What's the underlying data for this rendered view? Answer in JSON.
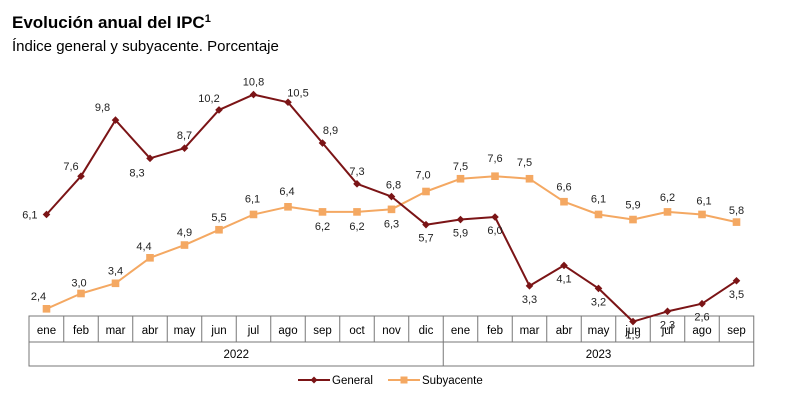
{
  "header": {
    "title": "Evolución anual del IPC",
    "title_sup": "1",
    "subtitle": "Índice general y subyacente. Porcentaje"
  },
  "colors": {
    "general": "#7b1416",
    "subyacente": "#f4a862",
    "axis": "#777777"
  },
  "chart_data": {
    "type": "line",
    "title": "Evolución anual del IPC",
    "subtitle": "Índice general y subyacente. Porcentaje",
    "categories": [
      "ene",
      "feb",
      "mar",
      "abr",
      "may",
      "jun",
      "jul",
      "ago",
      "sep",
      "oct",
      "nov",
      "dic",
      "ene",
      "feb",
      "mar",
      "abr",
      "may",
      "jun",
      "jul",
      "ago",
      "sep"
    ],
    "years": [
      {
        "label": "2022",
        "start": 0,
        "end": 11
      },
      {
        "label": "2023",
        "start": 12,
        "end": 20
      }
    ],
    "series": [
      {
        "name": "General",
        "values": [
          6.1,
          7.6,
          9.8,
          8.3,
          8.7,
          10.2,
          10.8,
          10.5,
          8.9,
          7.3,
          6.8,
          5.7,
          5.9,
          6.0,
          3.3,
          4.1,
          3.2,
          1.9,
          2.3,
          2.6,
          3.5
        ],
        "labels": [
          "6,1",
          "7,6",
          "9,8",
          "8,3",
          "8,7",
          "10,2",
          "10,8",
          "10,5",
          "8,9",
          "7,3",
          "6,8",
          "5,7",
          "5,9",
          "6,0",
          "3,3",
          "4,1",
          "3,2",
          "1,9",
          "2,3",
          "2,6",
          "3,5"
        ]
      },
      {
        "name": "Subyacente",
        "values": [
          2.4,
          3.0,
          3.4,
          4.4,
          4.9,
          5.5,
          6.1,
          6.4,
          6.2,
          6.2,
          6.3,
          7.0,
          7.5,
          7.6,
          7.5,
          6.6,
          6.1,
          5.9,
          6.2,
          6.1,
          5.8
        ],
        "labels": [
          "2,4",
          "3,0",
          "3,4",
          "4,4",
          "4,9",
          "5,5",
          "6,1",
          "6,4",
          "6,2",
          "6,2",
          "6,3",
          "7,0",
          "7,5",
          "7,6",
          "7,5",
          "6,6",
          "6,1",
          "5,9",
          "6,2",
          "6,1",
          "5,8"
        ]
      }
    ],
    "legend_position": "bottom-center",
    "grid": false
  }
}
